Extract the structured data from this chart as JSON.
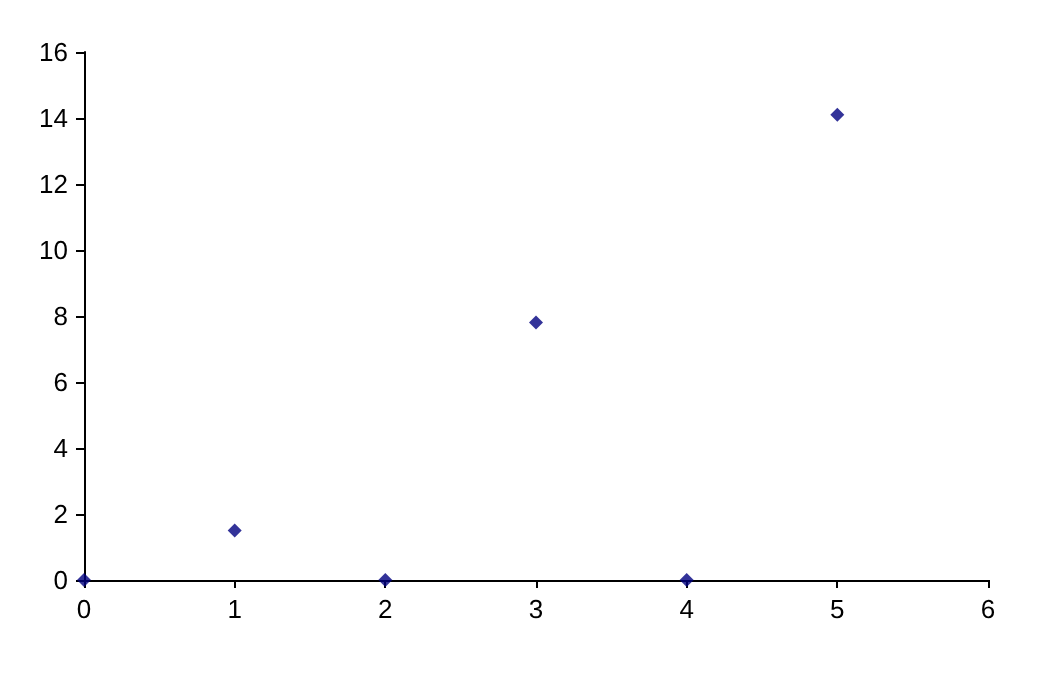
{
  "chart_data": {
    "type": "scatter",
    "x": [
      0,
      1,
      2,
      3,
      4,
      5
    ],
    "values": [
      0,
      1.5,
      0,
      7.8,
      0,
      14.1
    ],
    "color": "#000080",
    "marker": "diamond",
    "xlim": [
      0,
      6
    ],
    "xticks": [
      0,
      1,
      2,
      3,
      4,
      5,
      6
    ],
    "ylim": [
      0,
      16
    ],
    "yticks": [
      0,
      2,
      4,
      6,
      8,
      10,
      12,
      14,
      16
    ],
    "grid": false
  }
}
